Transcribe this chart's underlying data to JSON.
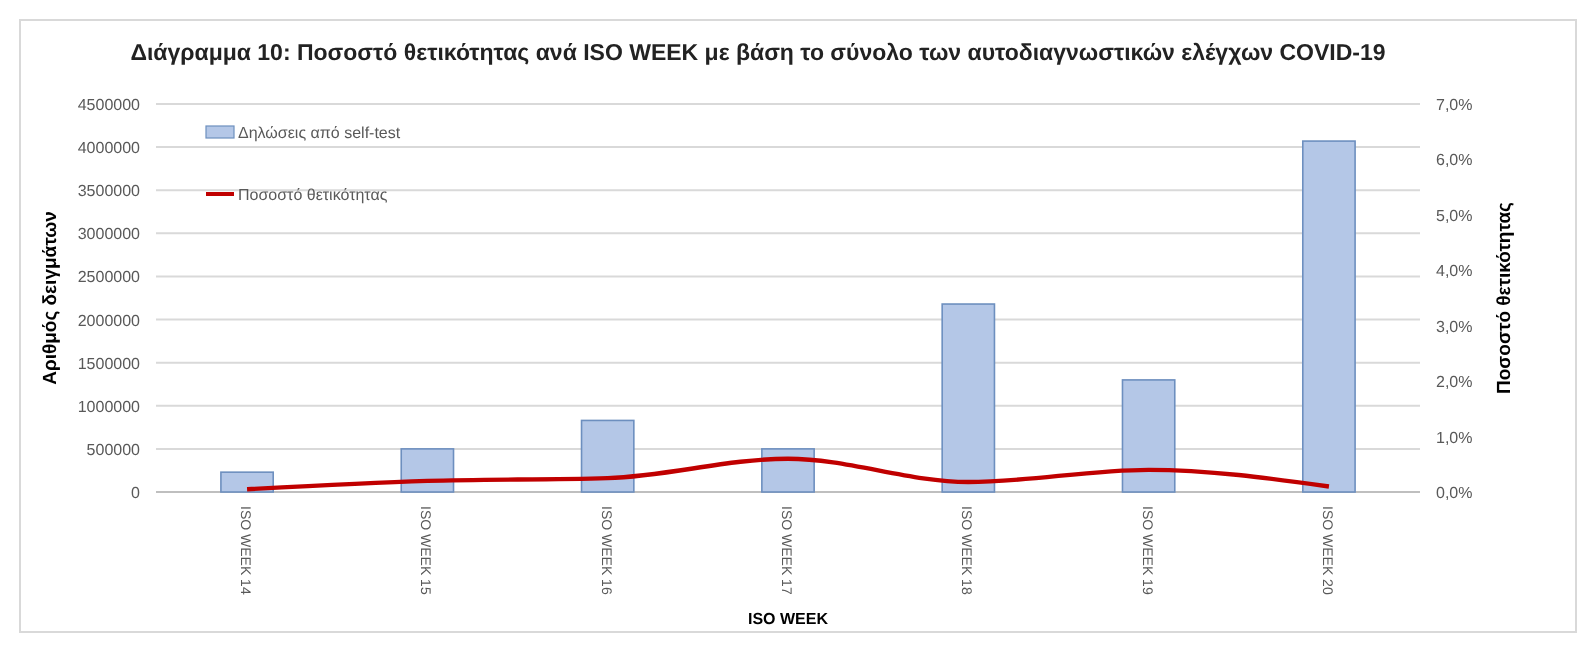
{
  "chart_data": {
    "type": "bar",
    "title": "Διάγραμμα 10: Ποσοστό  θετικότητας ανά ISO WEEK  με βάση το σύνολο των αυτοδιαγνωστικών  ελέγχων COVID-19",
    "xlabel": "ISO WEEK",
    "ylabel": "Αριθμός δειγμάτων",
    "y2label": "Ποσοστό θετικότητας",
    "categories": [
      "ISO WEEK  14",
      "ISO WEEK  15",
      "ISO WEEK  16",
      "ISO WEEK  17",
      "ISO WEEK  18",
      "ISO WEEK  19",
      "ISO WEEK  20"
    ],
    "series": [
      {
        "name": "Δηλώσεις από self-test",
        "color": "#b4c7e7",
        "values": [
          230000,
          500000,
          830000,
          500000,
          2180000,
          1300000,
          4070000
        ]
      },
      {
        "name": "Ποσοστό θετικότητας",
        "type": "line",
        "axis": "y2",
        "color": "#c00000",
        "values": [
          0.05,
          0.2,
          0.25,
          0.6,
          0.18,
          0.4,
          0.1
        ]
      }
    ],
    "ylim": [
      0,
      4500000
    ],
    "yticks": [
      0,
      500000,
      1000000,
      1500000,
      2000000,
      2500000,
      3000000,
      3500000,
      4000000,
      4500000
    ],
    "y2lim": [
      0,
      7
    ],
    "y2ticks": [
      {
        "value": 0,
        "label": "0,0%"
      },
      {
        "value": 1,
        "label": "1,0%"
      },
      {
        "value": 2,
        "label": "2,0%"
      },
      {
        "value": 3,
        "label": "3,0%"
      },
      {
        "value": 4,
        "label": "4,0%"
      },
      {
        "value": 5,
        "label": "5,0%"
      },
      {
        "value": 6,
        "label": "6,0%"
      },
      {
        "value": 7,
        "label": "7,0%"
      }
    ],
    "grid": "y",
    "legend": "top left",
    "marker": "none",
    "line_style": "solid"
  }
}
